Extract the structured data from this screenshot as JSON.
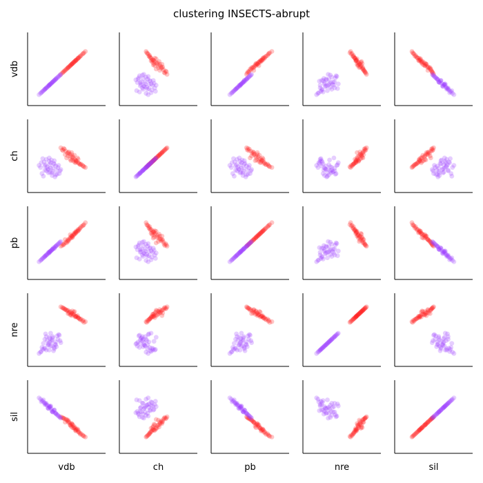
{
  "chart_data": {
    "type": "scatter",
    "title": "clustering INSECTS-abrupt",
    "variables": [
      "vdb",
      "ch",
      "pb",
      "nre",
      "sil"
    ],
    "plot_kind": "pairplot",
    "x_labels_position": "bottom-row",
    "y_labels_position": "left-column",
    "tick_labels": "none",
    "grid": false,
    "legend": "none",
    "point_alpha": 0.25,
    "colors": {
      "group_a": "#ff1a1a",
      "group_b": "#9a3cff",
      "axis": "#000000",
      "background": "#ffffff"
    },
    "series": [
      {
        "color": "#ff1a1a",
        "points": [
          {
            "vdb": 0.55,
            "ch": 0.45,
            "pb": 0.62,
            "nre": 0.72,
            "sil": 0.38
          },
          {
            "vdb": 0.58,
            "ch": 0.48,
            "pb": 0.58,
            "nre": 0.78,
            "sil": 0.34
          },
          {
            "vdb": 0.62,
            "ch": 0.44,
            "pb": 0.66,
            "nre": 0.7,
            "sil": 0.3
          },
          {
            "vdb": 0.48,
            "ch": 0.52,
            "pb": 0.55,
            "nre": 0.8,
            "sil": 0.42
          },
          {
            "vdb": 0.66,
            "ch": 0.4,
            "pb": 0.7,
            "nre": 0.68,
            "sil": 0.28
          },
          {
            "vdb": 0.52,
            "ch": 0.5,
            "pb": 0.52,
            "nre": 0.74,
            "sil": 0.45
          },
          {
            "vdb": 0.7,
            "ch": 0.38,
            "pb": 0.74,
            "nre": 0.66,
            "sil": 0.25
          },
          {
            "vdb": 0.45,
            "ch": 0.58,
            "pb": 0.48,
            "nre": 0.82,
            "sil": 0.48
          },
          {
            "vdb": 0.6,
            "ch": 0.46,
            "pb": 0.64,
            "nre": 0.76,
            "sil": 0.33
          },
          {
            "vdb": 0.57,
            "ch": 0.55,
            "pb": 0.6,
            "nre": 0.71,
            "sil": 0.4
          },
          {
            "vdb": 0.64,
            "ch": 0.42,
            "pb": 0.68,
            "nre": 0.69,
            "sil": 0.31
          },
          {
            "vdb": 0.5,
            "ch": 0.47,
            "pb": 0.5,
            "nre": 0.79,
            "sil": 0.46
          },
          {
            "vdb": 0.73,
            "ch": 0.35,
            "pb": 0.76,
            "nre": 0.64,
            "sil": 0.22
          },
          {
            "vdb": 0.42,
            "ch": 0.62,
            "pb": 0.45,
            "nre": 0.84,
            "sil": 0.5
          },
          {
            "vdb": 0.56,
            "ch": 0.43,
            "pb": 0.57,
            "nre": 0.73,
            "sil": 0.36
          },
          {
            "vdb": 0.61,
            "ch": 0.51,
            "pb": 0.63,
            "nre": 0.77,
            "sil": 0.35
          },
          {
            "vdb": 0.67,
            "ch": 0.39,
            "pb": 0.69,
            "nre": 0.67,
            "sil": 0.27
          },
          {
            "vdb": 0.53,
            "ch": 0.56,
            "pb": 0.54,
            "nre": 0.75,
            "sil": 0.43
          },
          {
            "vdb": 0.76,
            "ch": 0.33,
            "pb": 0.8,
            "nre": 0.62,
            "sil": 0.2
          },
          {
            "vdb": 0.47,
            "ch": 0.6,
            "pb": 0.49,
            "nre": 0.81,
            "sil": 0.47
          },
          {
            "vdb": 0.59,
            "ch": 0.49,
            "pb": 0.61,
            "nre": 0.72,
            "sil": 0.37
          },
          {
            "vdb": 0.63,
            "ch": 0.41,
            "pb": 0.65,
            "nre": 0.7,
            "sil": 0.29
          },
          {
            "vdb": 0.51,
            "ch": 0.54,
            "pb": 0.53,
            "nre": 0.78,
            "sil": 0.44
          },
          {
            "vdb": 0.69,
            "ch": 0.37,
            "pb": 0.72,
            "nre": 0.65,
            "sil": 0.24
          },
          {
            "vdb": 0.44,
            "ch": 0.59,
            "pb": 0.46,
            "nre": 0.83,
            "sil": 0.49
          },
          {
            "vdb": 0.58,
            "ch": 0.44,
            "pb": 0.59,
            "nre": 0.74,
            "sil": 0.39
          },
          {
            "vdb": 0.65,
            "ch": 0.47,
            "pb": 0.67,
            "nre": 0.71,
            "sil": 0.32
          },
          {
            "vdb": 0.54,
            "ch": 0.53,
            "pb": 0.56,
            "nre": 0.76,
            "sil": 0.41
          },
          {
            "vdb": 0.72,
            "ch": 0.36,
            "pb": 0.75,
            "nre": 0.63,
            "sil": 0.23
          },
          {
            "vdb": 0.49,
            "ch": 0.57,
            "pb": 0.51,
            "nre": 0.8,
            "sil": 0.46
          },
          {
            "vdb": 0.6,
            "ch": 0.42,
            "pb": 0.62,
            "nre": 0.73,
            "sil": 0.34
          },
          {
            "vdb": 0.66,
            "ch": 0.45,
            "pb": 0.68,
            "nre": 0.68,
            "sil": 0.3
          },
          {
            "vdb": 0.55,
            "ch": 0.5,
            "pb": 0.58,
            "nre": 0.77,
            "sil": 0.38
          },
          {
            "vdb": 0.62,
            "ch": 0.4,
            "pb": 0.64,
            "nre": 0.69,
            "sil": 0.33
          },
          {
            "vdb": 0.46,
            "ch": 0.61,
            "pb": 0.47,
            "nre": 0.82,
            "sil": 0.48
          },
          {
            "vdb": 0.74,
            "ch": 0.34,
            "pb": 0.77,
            "nre": 0.61,
            "sil": 0.21
          },
          {
            "vdb": 0.57,
            "ch": 0.52,
            "pb": 0.6,
            "nre": 0.75,
            "sil": 0.39
          },
          {
            "vdb": 0.63,
            "ch": 0.43,
            "pb": 0.66,
            "nre": 0.7,
            "sil": 0.31
          },
          {
            "vdb": 0.52,
            "ch": 0.55,
            "pb": 0.55,
            "nre": 0.79,
            "sil": 0.42
          },
          {
            "vdb": 0.68,
            "ch": 0.38,
            "pb": 0.71,
            "nre": 0.66,
            "sil": 0.26
          }
        ]
      },
      {
        "color": "#9a3cff",
        "points": [
          {
            "vdb": 0.25,
            "ch": 0.3,
            "pb": 0.35,
            "nre": 0.28,
            "sil": 0.62
          },
          {
            "vdb": 0.2,
            "ch": 0.35,
            "pb": 0.3,
            "nre": 0.22,
            "sil": 0.68
          },
          {
            "vdb": 0.3,
            "ch": 0.25,
            "pb": 0.4,
            "nre": 0.35,
            "sil": 0.58
          },
          {
            "vdb": 0.15,
            "ch": 0.4,
            "pb": 0.25,
            "nre": 0.18,
            "sil": 0.72
          },
          {
            "vdb": 0.35,
            "ch": 0.22,
            "pb": 0.45,
            "nre": 0.32,
            "sil": 0.55
          },
          {
            "vdb": 0.28,
            "ch": 0.32,
            "pb": 0.38,
            "nre": 0.26,
            "sil": 0.65
          },
          {
            "vdb": 0.22,
            "ch": 0.28,
            "pb": 0.32,
            "nre": 0.4,
            "sil": 0.7
          },
          {
            "vdb": 0.33,
            "ch": 0.38,
            "pb": 0.42,
            "nre": 0.24,
            "sil": 0.6
          },
          {
            "vdb": 0.18,
            "ch": 0.2,
            "pb": 0.28,
            "nre": 0.3,
            "sil": 0.75
          },
          {
            "vdb": 0.38,
            "ch": 0.33,
            "pb": 0.48,
            "nre": 0.36,
            "sil": 0.52
          },
          {
            "vdb": 0.26,
            "ch": 0.42,
            "pb": 0.36,
            "nre": 0.2,
            "sil": 0.66
          },
          {
            "vdb": 0.31,
            "ch": 0.27,
            "pb": 0.41,
            "nre": 0.38,
            "sil": 0.57
          },
          {
            "vdb": 0.12,
            "ch": 0.36,
            "pb": 0.22,
            "nre": 0.15,
            "sil": 0.78
          },
          {
            "vdb": 0.4,
            "ch": 0.24,
            "pb": 0.5,
            "nre": 0.42,
            "sil": 0.5
          },
          {
            "vdb": 0.24,
            "ch": 0.31,
            "pb": 0.34,
            "nre": 0.27,
            "sil": 0.63
          },
          {
            "vdb": 0.29,
            "ch": 0.44,
            "pb": 0.39,
            "nre": 0.33,
            "sil": 0.61
          },
          {
            "vdb": 0.36,
            "ch": 0.29,
            "pb": 0.46,
            "nre": 0.25,
            "sil": 0.54
          },
          {
            "vdb": 0.21,
            "ch": 0.37,
            "pb": 0.31,
            "nre": 0.44,
            "sil": 0.69
          },
          {
            "vdb": 0.34,
            "ch": 0.19,
            "pb": 0.44,
            "nre": 0.29,
            "sil": 0.56
          },
          {
            "vdb": 0.17,
            "ch": 0.46,
            "pb": 0.27,
            "nre": 0.21,
            "sil": 0.73
          },
          {
            "vdb": 0.27,
            "ch": 0.26,
            "pb": 0.37,
            "nre": 0.37,
            "sil": 0.64
          },
          {
            "vdb": 0.32,
            "ch": 0.39,
            "pb": 0.43,
            "nre": 0.19,
            "sil": 0.59
          },
          {
            "vdb": 0.23,
            "ch": 0.34,
            "pb": 0.33,
            "nre": 0.34,
            "sil": 0.67
          },
          {
            "vdb": 0.37,
            "ch": 0.23,
            "pb": 0.47,
            "nre": 0.41,
            "sil": 0.53
          },
          {
            "vdb": 0.19,
            "ch": 0.41,
            "pb": 0.29,
            "nre": 0.23,
            "sil": 0.71
          },
          {
            "vdb": 0.42,
            "ch": 0.3,
            "pb": 0.52,
            "nre": 0.31,
            "sil": 0.48
          },
          {
            "vdb": 0.26,
            "ch": 0.47,
            "pb": 0.35,
            "nre": 0.39,
            "sil": 0.65
          },
          {
            "vdb": 0.3,
            "ch": 0.21,
            "pb": 0.4,
            "nre": 0.26,
            "sil": 0.58
          },
          {
            "vdb": 0.14,
            "ch": 0.33,
            "pb": 0.24,
            "nre": 0.17,
            "sil": 0.76
          },
          {
            "vdb": 0.39,
            "ch": 0.36,
            "pb": 0.49,
            "nre": 0.43,
            "sil": 0.51
          },
          {
            "vdb": 0.25,
            "ch": 0.25,
            "pb": 0.36,
            "nre": 0.3,
            "sil": 0.63
          },
          {
            "vdb": 0.33,
            "ch": 0.43,
            "pb": 0.42,
            "nre": 0.22,
            "sil": 0.6
          },
          {
            "vdb": 0.2,
            "ch": 0.29,
            "pb": 0.3,
            "nre": 0.36,
            "sil": 0.7
          },
          {
            "vdb": 0.35,
            "ch": 0.35,
            "pb": 0.45,
            "nre": 0.28,
            "sil": 0.55
          },
          {
            "vdb": 0.28,
            "ch": 0.4,
            "pb": 0.38,
            "nre": 0.45,
            "sil": 0.66
          },
          {
            "vdb": 0.16,
            "ch": 0.24,
            "pb": 0.26,
            "nre": 0.24,
            "sil": 0.74
          },
          {
            "vdb": 0.41,
            "ch": 0.28,
            "pb": 0.51,
            "nre": 0.34,
            "sil": 0.49
          },
          {
            "vdb": 0.22,
            "ch": 0.45,
            "pb": 0.32,
            "nre": 0.2,
            "sil": 0.68
          },
          {
            "vdb": 0.31,
            "ch": 0.32,
            "pb": 0.41,
            "nre": 0.4,
            "sil": 0.57
          },
          {
            "vdb": 0.27,
            "ch": 0.37,
            "pb": 0.37,
            "nre": 0.32,
            "sil": 0.64
          }
        ]
      }
    ]
  }
}
